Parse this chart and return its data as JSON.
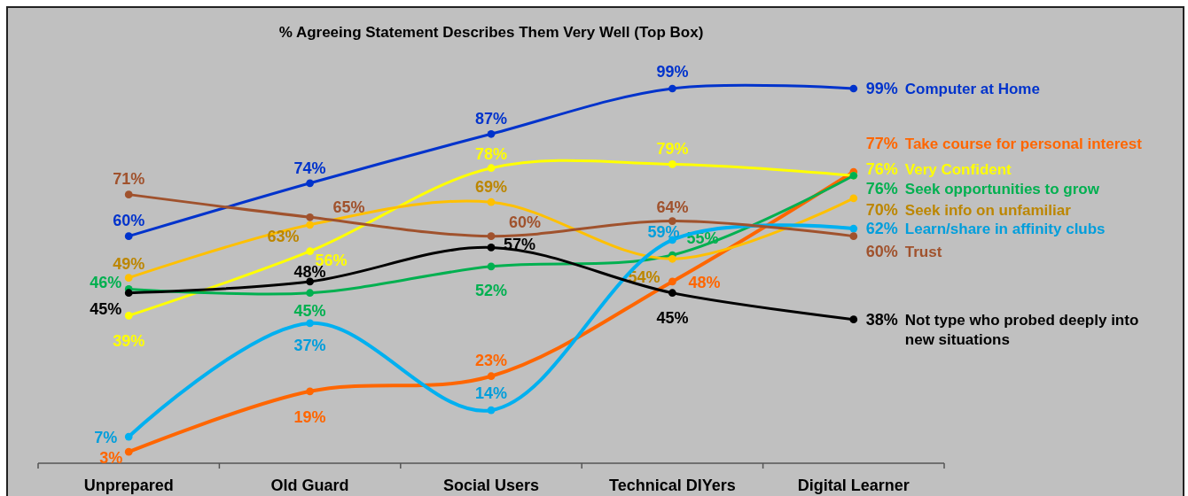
{
  "chart_data": {
    "type": "line",
    "title": "% Agreeing Statement Describes Them Very Well (Top Box)",
    "categories": [
      "Unprepared",
      "Old Guard",
      "Social Users",
      "Technical DIYers",
      "Digital Learner"
    ],
    "tick_labels": "x",
    "marker": "circle",
    "line_style": "solid",
    "series": [
      {
        "name": "Computer at Home",
        "color": "#0033cc",
        "values": [
          60,
          74,
          87,
          99,
          99
        ],
        "value_labels": [
          "60%",
          "74%",
          "87%",
          "99%",
          "99%"
        ]
      },
      {
        "name": "Take course for personal interest",
        "color": "#ff6600",
        "values": [
          3,
          19,
          23,
          48,
          77
        ],
        "value_labels": [
          "3%",
          "19%",
          "23%",
          "48%",
          "77%"
        ]
      },
      {
        "name": "Very Confident",
        "color": "#ffff00",
        "values": [
          39,
          56,
          78,
          79,
          76
        ],
        "value_labels": [
          "39%",
          "56%",
          "78%",
          "79%",
          "76%"
        ]
      },
      {
        "name": "Seek opportunities to grow",
        "color": "#00b050",
        "values": [
          46,
          45,
          52,
          55,
          76
        ],
        "value_labels": [
          "46%",
          "45%",
          "52%",
          "55%",
          "76%"
        ]
      },
      {
        "name": "Seek info on unfamiliar",
        "color": "#ffc000",
        "values": [
          49,
          63,
          69,
          54,
          70
        ],
        "value_labels": [
          "49%",
          "63%",
          "69%",
          "54%",
          "70%"
        ]
      },
      {
        "name": "Learn/share in affinity clubs",
        "color": "#00b0f0",
        "values": [
          7,
          37,
          14,
          59,
          62
        ],
        "value_labels": [
          "7%",
          "37%",
          "14%",
          "59%",
          "62%"
        ]
      },
      {
        "name": "Trust",
        "color": "#a0522d",
        "values": [
          71,
          65,
          60,
          64,
          60
        ],
        "value_labels": [
          "71%",
          "65%",
          "60%",
          "64%",
          "60%"
        ]
      },
      {
        "name": "Not type who probed deeply into new situations",
        "color": "#000000",
        "values": [
          45,
          48,
          57,
          45,
          38
        ],
        "value_labels": [
          "45%",
          "48%",
          "57%",
          "45%",
          "38%"
        ]
      }
    ]
  }
}
